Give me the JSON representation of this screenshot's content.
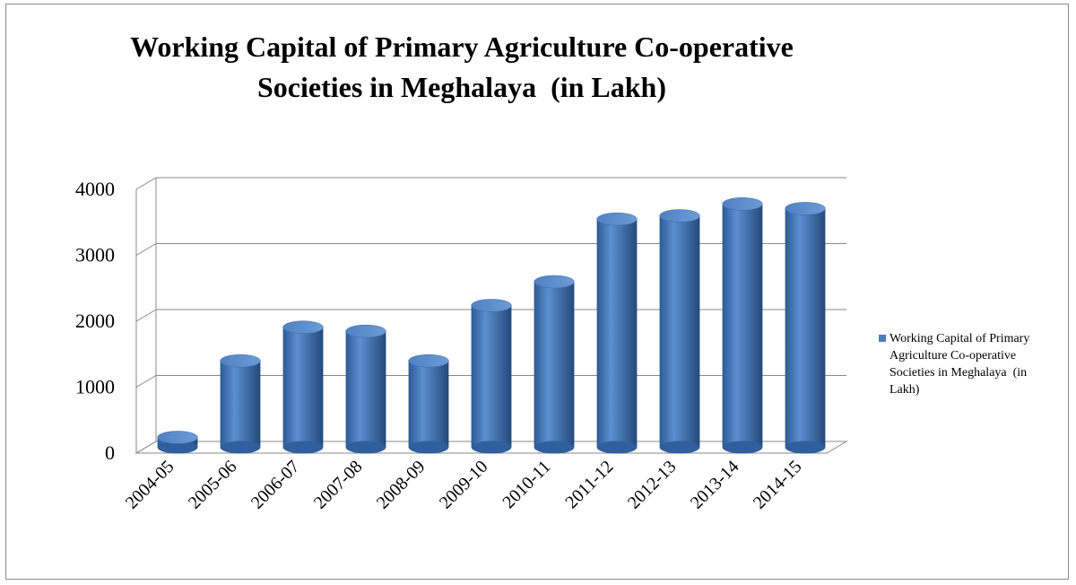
{
  "chart_data": {
    "type": "bar",
    "title": "Working Capital of Primary Agriculture Co-operative Societies in Meghalaya  (in Lakh)",
    "categories": [
      "2004-05",
      "2005-06",
      "2006-07",
      "2007-08",
      "2008-09",
      "2009-10",
      "2010-11",
      "2011-12",
      "2012-13",
      "2013-14",
      "2014-15"
    ],
    "series": [
      {
        "name": "Working Capital of Primary Agriculture Co-operative Societies in Meghalaya  (in Lakh)",
        "color": "#4a7ebb",
        "values": [
          150,
          1310,
          1820,
          1760,
          1310,
          2150,
          2510,
          3460,
          3510,
          3690,
          3620
        ]
      }
    ],
    "ylim": [
      0,
      4000
    ],
    "yticks": [
      0,
      1000,
      2000,
      3000,
      4000
    ],
    "grid": true,
    "legend": "right"
  }
}
